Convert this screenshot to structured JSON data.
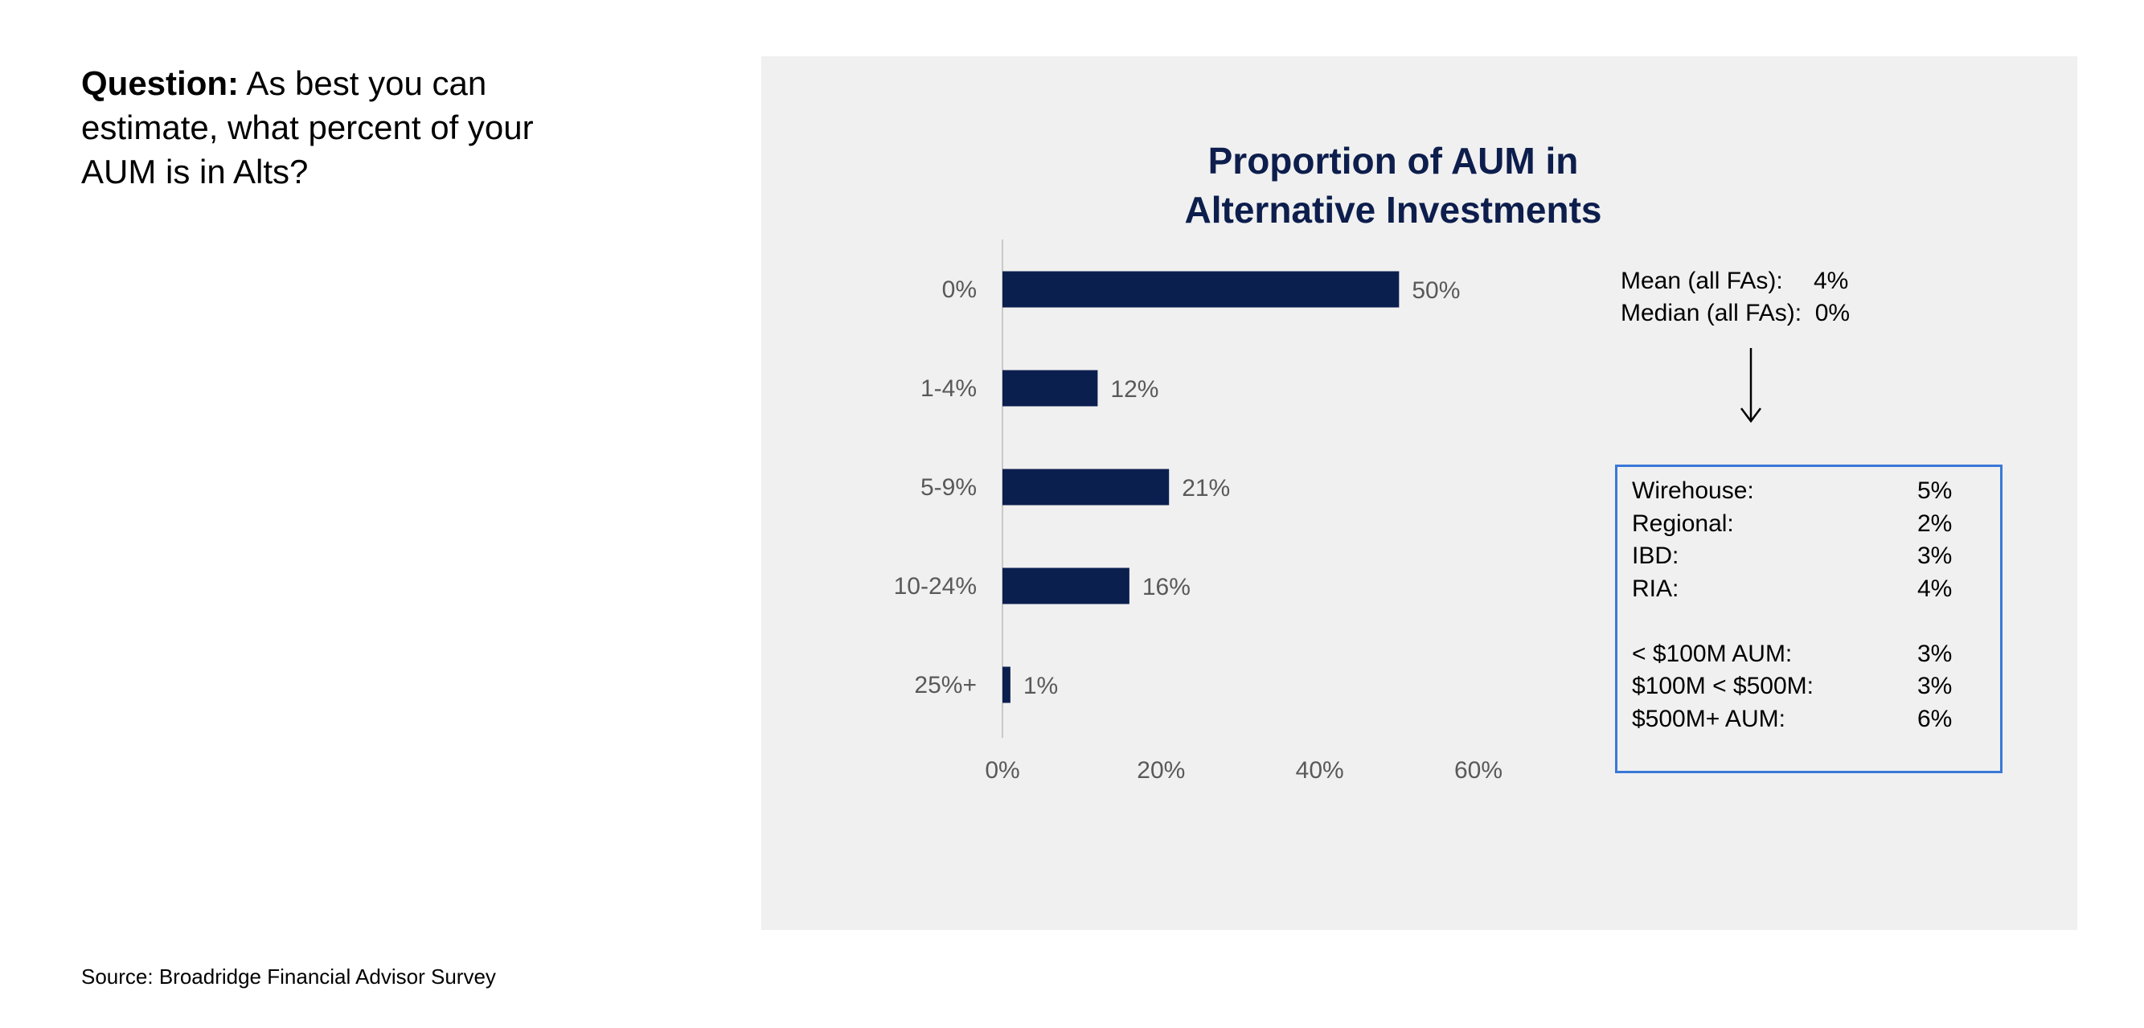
{
  "question": {
    "label": "Question:",
    "text": "As best you can estimate, what percent of your AUM is in Alts?"
  },
  "source": "Source: Broadridge Financial Advisor Survey",
  "colors": {
    "bar": "#0b1f4f",
    "title": "#0d1e4d",
    "axis_text": "#595959",
    "box_border": "#3a78d8",
    "panel": "#f0f0f0"
  },
  "chart_data": {
    "type": "bar",
    "orientation": "horizontal",
    "title": [
      "Proportion of AUM in",
      "Alternative Investments"
    ],
    "categories": [
      "0%",
      "1-4%",
      "5-9%",
      "10-24%",
      "25%+"
    ],
    "values": [
      50,
      12,
      21,
      16,
      1
    ],
    "value_labels": [
      "50%",
      "12%",
      "21%",
      "16%",
      "1%"
    ],
    "xlim": [
      0,
      60
    ],
    "xticks": [
      0,
      20,
      40,
      60
    ],
    "xtick_labels": [
      "0%",
      "20%",
      "40%",
      "60%"
    ],
    "grid": false,
    "legend": "none"
  },
  "stats": {
    "mean_label": "Mean (all FAs):",
    "mean_value": "4%",
    "median_label": "Median (all FAs):",
    "median_value": "0%"
  },
  "breakdown": {
    "group1": [
      {
        "name": "Wirehouse:",
        "value": "5%"
      },
      {
        "name": "Regional:",
        "value": "2%"
      },
      {
        "name": "IBD:",
        "value": "3%"
      },
      {
        "name": "RIA:",
        "value": "4%"
      }
    ],
    "group2": [
      {
        "name": "< $100M AUM:",
        "value": "3%"
      },
      {
        "name": "$100M < $500M:",
        "value": "3%"
      },
      {
        "name": "$500M+ AUM:",
        "value": "6%"
      }
    ]
  }
}
